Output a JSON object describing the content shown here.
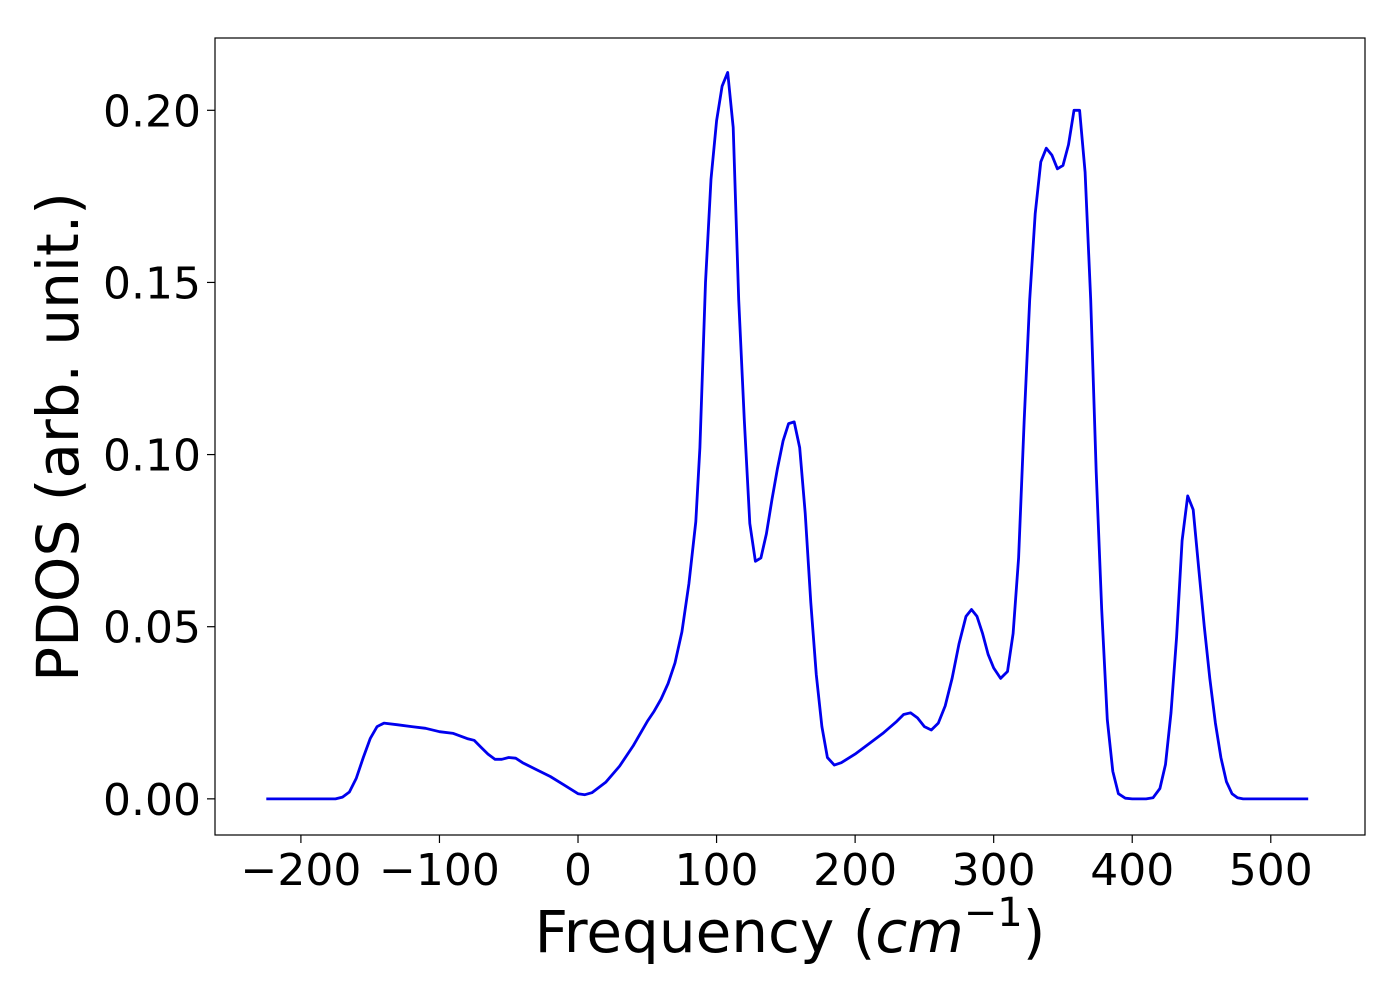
{
  "chart_data": {
    "type": "line",
    "title": "",
    "xlabel": {
      "prefix": "Frequency (",
      "var": "cm",
      "sup": "−1",
      "suffix": ")"
    },
    "ylabel": "PDOS (arb. unit.)",
    "xlim": [
      -262,
      568
    ],
    "ylim": [
      -0.0105,
      0.221
    ],
    "xticks": [
      -200,
      -100,
      0,
      100,
      200,
      300,
      400,
      500
    ],
    "xtick_labels": [
      "−200",
      "−100",
      "0",
      "100",
      "200",
      "300",
      "400",
      "500"
    ],
    "yticks": [
      0.0,
      0.05,
      0.1,
      0.15,
      0.2
    ],
    "ytick_labels": [
      "0.00",
      "0.05",
      "0.10",
      "0.15",
      "0.20"
    ],
    "grid": false,
    "legend": "none",
    "series": [
      {
        "color": "#0000ee",
        "x": [
          -225,
          -175,
          -170,
          -165,
          -160,
          -155,
          -150,
          -145,
          -140,
          -130,
          -120,
          -110,
          -100,
          -90,
          -80,
          -75,
          -70,
          -65,
          -60,
          -55,
          -50,
          -45,
          -40,
          -30,
          -20,
          -10,
          0,
          5,
          10,
          20,
          30,
          40,
          50,
          55,
          60,
          65,
          70,
          75,
          80,
          85,
          88,
          92,
          96,
          100,
          104,
          108,
          112,
          116,
          120,
          124,
          128,
          132,
          136,
          140,
          144,
          148,
          152,
          156,
          160,
          164,
          168,
          172,
          176,
          180,
          185,
          190,
          200,
          210,
          220,
          230,
          235,
          240,
          245,
          250,
          255,
          260,
          265,
          270,
          275,
          280,
          284,
          288,
          292,
          296,
          300,
          305,
          310,
          314,
          318,
          322,
          326,
          330,
          334,
          338,
          342,
          346,
          350,
          354,
          358,
          362,
          366,
          370,
          374,
          378,
          382,
          386,
          390,
          395,
          400,
          410,
          415,
          420,
          424,
          428,
          432,
          436,
          440,
          444,
          448,
          452,
          456,
          460,
          464,
          468,
          472,
          476,
          480,
          490,
          500,
          527
        ],
        "y": [
          0.0,
          0.0,
          0.0005,
          0.002,
          0.006,
          0.012,
          0.0175,
          0.021,
          0.022,
          0.0215,
          0.021,
          0.0205,
          0.0195,
          0.019,
          0.0175,
          0.017,
          0.015,
          0.013,
          0.0115,
          0.0115,
          0.012,
          0.0118,
          0.0105,
          0.0085,
          0.0065,
          0.004,
          0.0015,
          0.0012,
          0.0018,
          0.0048,
          0.0095,
          0.0155,
          0.0225,
          0.0255,
          0.029,
          0.0335,
          0.0395,
          0.0485,
          0.0625,
          0.0805,
          0.102,
          0.15,
          0.18,
          0.197,
          0.207,
          0.211,
          0.195,
          0.145,
          0.11,
          0.08,
          0.069,
          0.07,
          0.077,
          0.087,
          0.096,
          0.104,
          0.109,
          0.1095,
          0.102,
          0.083,
          0.057,
          0.036,
          0.021,
          0.012,
          0.0098,
          0.0105,
          0.013,
          0.016,
          0.019,
          0.0225,
          0.0245,
          0.025,
          0.0235,
          0.021,
          0.02,
          0.022,
          0.027,
          0.035,
          0.045,
          0.053,
          0.055,
          0.053,
          0.048,
          0.042,
          0.038,
          0.035,
          0.037,
          0.048,
          0.07,
          0.11,
          0.145,
          0.17,
          0.185,
          0.189,
          0.187,
          0.183,
          0.184,
          0.19,
          0.2,
          0.2,
          0.182,
          0.145,
          0.095,
          0.055,
          0.023,
          0.008,
          0.0015,
          0.0002,
          0.0,
          0.0,
          0.0003,
          0.003,
          0.01,
          0.025,
          0.047,
          0.075,
          0.088,
          0.084,
          0.067,
          0.05,
          0.035,
          0.022,
          0.012,
          0.005,
          0.0015,
          0.0003,
          0.0,
          0.0,
          0.0,
          0.0
        ]
      }
    ]
  }
}
